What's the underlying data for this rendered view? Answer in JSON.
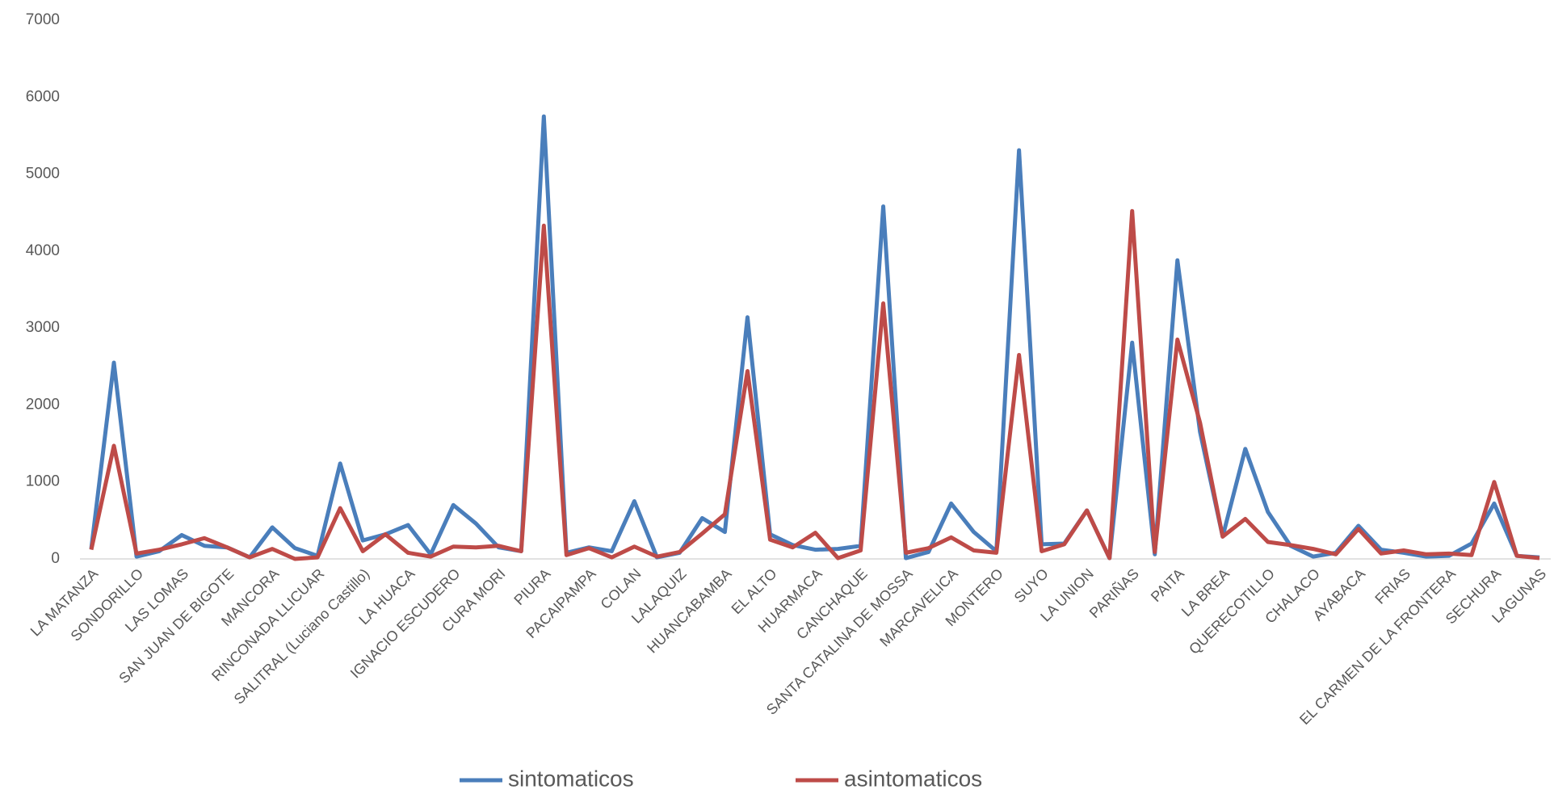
{
  "chart_data": {
    "type": "line",
    "categories": [
      "LA MATANZA",
      null,
      "SONDORILLO",
      null,
      "LAS LOMAS",
      null,
      "SAN JUAN DE BIGOTE",
      null,
      "MANCORA",
      null,
      "RINCONADA LLICUAR",
      null,
      "SALITRAL (Luciano Castillo)",
      null,
      "LA HUACA",
      null,
      "IGNACIO ESCUDERO",
      null,
      "CURA MORI",
      null,
      "PIURA",
      null,
      "PACAIPAMPA",
      null,
      "COLAN",
      null,
      "LALAQUIZ",
      null,
      "HUANCABAMBA",
      null,
      "EL ALTO",
      null,
      "HUARMACA",
      null,
      "CANCHAQUE",
      null,
      "SANTA CATALINA DE MOSSA",
      null,
      "MARCAVELICA",
      null,
      "MONTERO",
      null,
      "SUYO",
      null,
      "LA UNION",
      null,
      "PARIÑAS",
      null,
      "PAITA",
      null,
      "LA BREA",
      null,
      "QUERECOTILLO",
      null,
      "CHALACO",
      null,
      "AYABACA",
      null,
      "FRIAS",
      null,
      "EL CARMEN DE LA FRONTERA",
      null,
      "SECHURA",
      null,
      "LAGUNAS"
    ],
    "series": [
      {
        "name": "sintomaticos",
        "color": "#4a7ebb",
        "values": [
          130,
          2550,
          30,
          100,
          310,
          170,
          150,
          20,
          410,
          140,
          40,
          1240,
          240,
          320,
          440,
          60,
          700,
          460,
          150,
          100,
          5750,
          80,
          150,
          100,
          750,
          20,
          80,
          530,
          350,
          3140,
          320,
          180,
          120,
          130,
          170,
          4580,
          10,
          90,
          720,
          350,
          100,
          5310,
          190,
          200,
          630,
          10,
          2810,
          60,
          3880,
          1650,
          290,
          1430,
          610,
          170,
          30,
          80,
          430,
          120,
          80,
          30,
          40,
          200,
          720,
          40,
          20
        ]
      },
      {
        "name": "asintomaticos",
        "color": "#be4b48",
        "values": [
          120,
          1470,
          70,
          120,
          190,
          270,
          150,
          20,
          130,
          0,
          20,
          660,
          100,
          320,
          80,
          30,
          160,
          150,
          170,
          100,
          4330,
          50,
          140,
          20,
          160,
          30,
          90,
          330,
          580,
          2440,
          250,
          150,
          340,
          10,
          110,
          3320,
          80,
          140,
          280,
          110,
          80,
          2650,
          100,
          190,
          630,
          10,
          4520,
          90,
          2850,
          1770,
          290,
          520,
          220,
          180,
          130,
          60,
          390,
          70,
          110,
          60,
          70,
          50,
          1000,
          40,
          10
        ]
      }
    ],
    "ylim": [
      0,
      7000
    ],
    "yticks": [
      0,
      1000,
      2000,
      3000,
      4000,
      5000,
      6000,
      7000
    ],
    "grid": false,
    "legend": "bottom"
  }
}
